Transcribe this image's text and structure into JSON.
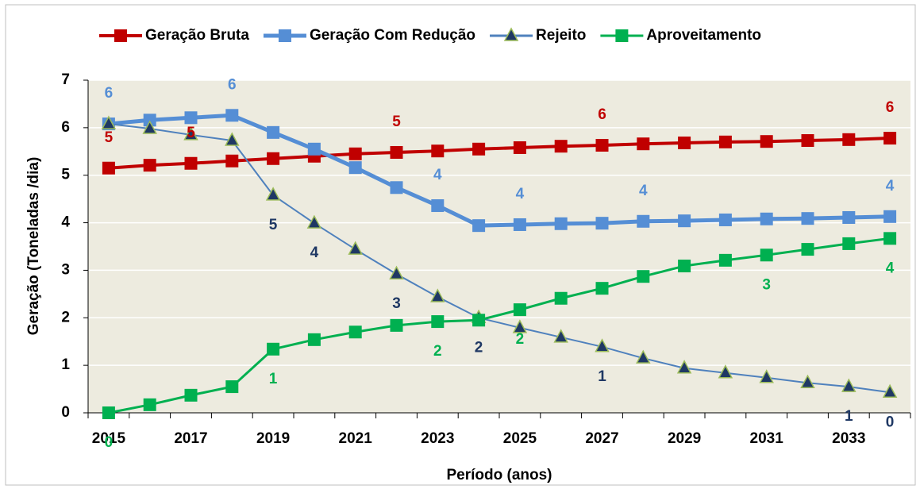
{
  "chart_data": {
    "type": "line",
    "categories": [
      "2015",
      null,
      "2017",
      null,
      "2019",
      null,
      "2021",
      null,
      "2023",
      null,
      "2025",
      null,
      "2027",
      null,
      "2029",
      null,
      "2031",
      null,
      "2033",
      null
    ],
    "x_label": "Período (anos)",
    "y_label": "Geração (Toneladas /dia)",
    "ylim": [
      0,
      7
    ],
    "yticks": [
      0,
      1,
      2,
      3,
      4,
      5,
      6,
      7
    ],
    "grid": true,
    "legend": "top",
    "series": [
      {
        "name": "Geração Bruta",
        "color": "#c00000",
        "label_color": "#c00000",
        "marker": "square",
        "width": 4,
        "values": [
          5.15,
          5.21,
          5.25,
          5.3,
          5.35,
          5.4,
          5.45,
          5.48,
          5.51,
          5.55,
          5.58,
          5.61,
          5.63,
          5.66,
          5.68,
          5.7,
          5.71,
          5.73,
          5.75,
          5.78
        ],
        "value_labels": [
          "5",
          null,
          "5",
          null,
          null,
          null,
          null,
          "5",
          null,
          null,
          null,
          null,
          "6",
          null,
          null,
          null,
          null,
          null,
          null,
          "6"
        ]
      },
      {
        "name": "Geração Com Redução",
        "color": "#558ed5",
        "label_color": "#558ed5",
        "marker": "square",
        "width": 5,
        "values": [
          6.08,
          6.16,
          6.21,
          6.26,
          5.9,
          5.55,
          5.16,
          4.74,
          4.36,
          3.94,
          3.96,
          3.98,
          3.99,
          4.03,
          4.04,
          4.06,
          4.08,
          4.09,
          4.11,
          4.13
        ],
        "value_labels": [
          "6",
          null,
          null,
          "6",
          null,
          null,
          null,
          null,
          "4",
          null,
          "4",
          null,
          null,
          "4",
          null,
          null,
          null,
          null,
          null,
          "4"
        ]
      },
      {
        "name": "Rejeito",
        "color": "#4f81bd",
        "label_color": "#1f3864",
        "marker": "triangle",
        "marker_color": "#1f3864",
        "width": 2,
        "values": [
          6.08,
          5.98,
          5.85,
          5.73,
          4.58,
          3.99,
          3.44,
          2.92,
          2.44,
          2.0,
          1.79,
          1.59,
          1.39,
          1.15,
          0.94,
          0.84,
          0.74,
          0.63,
          0.55,
          0.43
        ],
        "value_labels": [
          null,
          null,
          null,
          null,
          "5",
          "4",
          null,
          "3",
          null,
          "2",
          null,
          null,
          "1",
          null,
          null,
          null,
          null,
          null,
          "1",
          "0"
        ]
      },
      {
        "name": "Aproveitamento",
        "color": "#00b050",
        "label_color": "#00b050",
        "marker": "square",
        "width": 3,
        "values": [
          0,
          0.17,
          0.37,
          0.55,
          1.34,
          1.54,
          1.7,
          1.84,
          1.92,
          1.95,
          2.17,
          2.41,
          2.62,
          2.87,
          3.09,
          3.21,
          3.32,
          3.44,
          3.56,
          3.67
        ],
        "value_labels": [
          "0",
          null,
          null,
          null,
          "1",
          null,
          null,
          null,
          "2",
          null,
          "2",
          null,
          null,
          null,
          null,
          null,
          "3",
          null,
          null,
          "4"
        ]
      }
    ]
  }
}
